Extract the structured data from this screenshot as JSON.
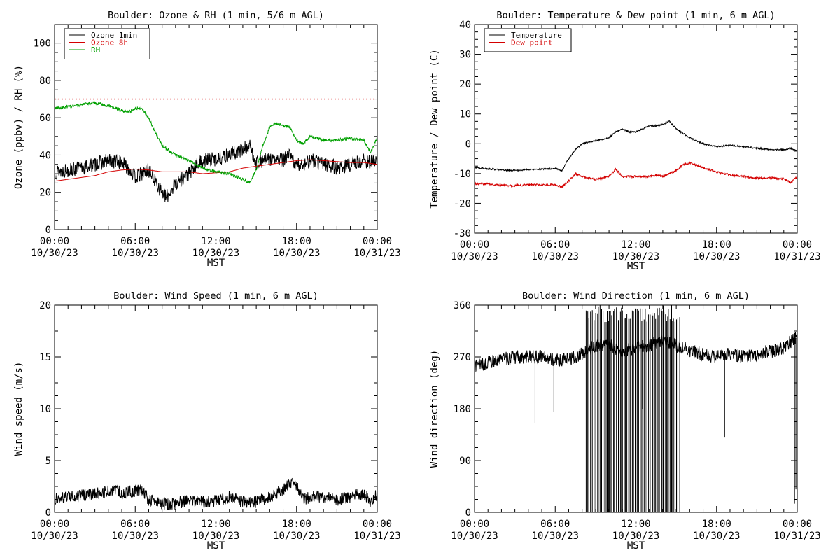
{
  "chart_data": [
    {
      "type": "line",
      "title": "Boulder: Ozone & RH (1 min, 5/6 m AGL)",
      "xlabel": "MST",
      "ylabel": "Ozone (ppbv) / RH (%)",
      "x_ticks": [
        {
          "time": "00:00",
          "date": "10/30/23"
        },
        {
          "time": "06:00",
          "date": "10/30/23"
        },
        {
          "time": "12:00",
          "date": "10/30/23"
        },
        {
          "time": "18:00",
          "date": "10/30/23"
        },
        {
          "time": "00:00",
          "date": "10/31/23"
        }
      ],
      "xlim_hours": [
        0,
        24
      ],
      "ylim": [
        0,
        110
      ],
      "y_ticks": [
        0,
        20,
        40,
        60,
        80,
        100
      ],
      "legend": "top-left",
      "reference_line": {
        "value": 70,
        "color": "#d40000",
        "style": "dotted"
      },
      "series": [
        {
          "name": "Ozone 1min",
          "color": "#000000",
          "noise": 4,
          "points": [
            [
              0,
              31
            ],
            [
              1,
              32
            ],
            [
              2,
              33
            ],
            [
              3,
              35
            ],
            [
              4,
              37
            ],
            [
              5,
              36
            ],
            [
              5.5,
              33
            ],
            [
              6,
              28
            ],
            [
              6.5,
              30
            ],
            [
              7,
              32
            ],
            [
              7.5,
              26
            ],
            [
              8,
              20
            ],
            [
              8.3,
              17
            ],
            [
              9,
              25
            ],
            [
              10,
              30
            ],
            [
              10.5,
              34
            ],
            [
              11,
              37
            ],
            [
              12,
              38
            ],
            [
              13,
              40
            ],
            [
              14,
              43
            ],
            [
              14.5,
              45
            ],
            [
              15,
              36
            ],
            [
              16,
              38
            ],
            [
              17,
              37
            ],
            [
              17.5,
              40
            ],
            [
              18,
              34
            ],
            [
              19,
              37
            ],
            [
              20,
              36
            ],
            [
              21,
              33
            ],
            [
              22,
              35
            ],
            [
              23,
              37
            ],
            [
              24,
              36
            ]
          ]
        },
        {
          "name": "Ozone 8h",
          "color": "#d40000",
          "noise": 0,
          "points": [
            [
              0,
              26
            ],
            [
              1,
              27
            ],
            [
              2,
              28
            ],
            [
              3,
              29
            ],
            [
              4,
              31
            ],
            [
              5,
              32
            ],
            [
              6,
              32.5
            ],
            [
              7,
              32
            ],
            [
              8,
              31
            ],
            [
              9,
              31
            ],
            [
              10,
              31
            ],
            [
              11,
              30
            ],
            [
              12,
              30.5
            ],
            [
              13,
              31
            ],
            [
              14,
              33
            ],
            [
              15,
              34
            ],
            [
              16,
              35
            ],
            [
              17,
              36
            ],
            [
              18,
              37
            ],
            [
              19,
              37.5
            ],
            [
              20,
              37
            ],
            [
              21,
              36.5
            ],
            [
              22,
              36
            ],
            [
              23,
              36
            ],
            [
              24,
              35
            ]
          ]
        },
        {
          "name": "RH",
          "color": "#00a000",
          "noise": 0.8,
          "points": [
            [
              0,
              65
            ],
            [
              1,
              66
            ],
            [
              2,
              67
            ],
            [
              3,
              68
            ],
            [
              4,
              66.5
            ],
            [
              5,
              64
            ],
            [
              5.5,
              63
            ],
            [
              6,
              65
            ],
            [
              6.5,
              65
            ],
            [
              7,
              60
            ],
            [
              7.5,
              52
            ],
            [
              8,
              45
            ],
            [
              9,
              40
            ],
            [
              10,
              37
            ],
            [
              11,
              33
            ],
            [
              12,
              31
            ],
            [
              13,
              30
            ],
            [
              14,
              27
            ],
            [
              14.5,
              25
            ],
            [
              15,
              32
            ],
            [
              15.5,
              45
            ],
            [
              16,
              55
            ],
            [
              16.5,
              57
            ],
            [
              17,
              56
            ],
            [
              17.5,
              55
            ],
            [
              18,
              48
            ],
            [
              18.5,
              46
            ],
            [
              19,
              50
            ],
            [
              20,
              48
            ],
            [
              21,
              48
            ],
            [
              22,
              49
            ],
            [
              23,
              48
            ],
            [
              23.5,
              41
            ],
            [
              24,
              50
            ]
          ]
        }
      ]
    },
    {
      "type": "line",
      "title": "Boulder: Temperature & Dew point (1 min, 6 m AGL)",
      "xlabel": "MST",
      "ylabel": "Temperature / Dew point (C)",
      "x_ticks": [
        {
          "time": "00:00",
          "date": "10/30/23"
        },
        {
          "time": "06:00",
          "date": "10/30/23"
        },
        {
          "time": "12:00",
          "date": "10/30/23"
        },
        {
          "time": "18:00",
          "date": "10/30/23"
        },
        {
          "time": "00:00",
          "date": "10/31/23"
        }
      ],
      "xlim_hours": [
        0,
        24
      ],
      "ylim": [
        -30,
        40
      ],
      "y_ticks": [
        -30,
        -20,
        -10,
        0,
        10,
        20,
        30,
        40
      ],
      "legend": "top-left",
      "series": [
        {
          "name": "Temperature",
          "color": "#000000",
          "noise": 0.25,
          "points": [
            [
              0,
              -8
            ],
            [
              2,
              -8.8
            ],
            [
              3,
              -9
            ],
            [
              4,
              -8.7
            ],
            [
              5,
              -8.5
            ],
            [
              6,
              -8.3
            ],
            [
              6.5,
              -9
            ],
            [
              7,
              -5
            ],
            [
              7.5,
              -2
            ],
            [
              8,
              0
            ],
            [
              9,
              1
            ],
            [
              10,
              2
            ],
            [
              10.5,
              4
            ],
            [
              11,
              5
            ],
            [
              11.5,
              4
            ],
            [
              12,
              4
            ],
            [
              13,
              6
            ],
            [
              13.5,
              6
            ],
            [
              14,
              6.5
            ],
            [
              14.5,
              7.5
            ],
            [
              15,
              5
            ],
            [
              16,
              2
            ],
            [
              17,
              0
            ],
            [
              18,
              -1
            ],
            [
              19,
              -0.5
            ],
            [
              20,
              -1
            ],
            [
              21,
              -1.5
            ],
            [
              22,
              -2
            ],
            [
              23,
              -2
            ],
            [
              23.5,
              -1.5
            ],
            [
              24,
              -2.5
            ]
          ]
        },
        {
          "name": "Dew point",
          "color": "#d40000",
          "noise": 0.35,
          "points": [
            [
              0,
              -13.5
            ],
            [
              1,
              -13.5
            ],
            [
              2,
              -14
            ],
            [
              3,
              -14
            ],
            [
              4,
              -13.8
            ],
            [
              5,
              -13.8
            ],
            [
              6,
              -13.8
            ],
            [
              6.5,
              -14.5
            ],
            [
              7,
              -12.5
            ],
            [
              7.5,
              -10
            ],
            [
              8,
              -11
            ],
            [
              9,
              -12
            ],
            [
              10,
              -11
            ],
            [
              10.5,
              -8.5
            ],
            [
              11,
              -11
            ],
            [
              12,
              -11
            ],
            [
              13,
              -11
            ],
            [
              13.5,
              -10.5
            ],
            [
              14,
              -11
            ],
            [
              14.5,
              -10
            ],
            [
              15,
              -9
            ],
            [
              15.5,
              -7
            ],
            [
              16,
              -6.5
            ],
            [
              17,
              -8
            ],
            [
              18,
              -9.5
            ],
            [
              19,
              -10.5
            ],
            [
              20,
              -11
            ],
            [
              21,
              -11.5
            ],
            [
              22,
              -11.5
            ],
            [
              23,
              -11.8
            ],
            [
              23.5,
              -13
            ],
            [
              24,
              -11
            ]
          ]
        }
      ]
    },
    {
      "type": "line",
      "title": "Boulder: Wind Speed (1 min, 6 m AGL)",
      "xlabel": "MST",
      "ylabel": "Wind speed (m/s)",
      "x_ticks": [
        {
          "time": "00:00",
          "date": "10/30/23"
        },
        {
          "time": "06:00",
          "date": "10/30/23"
        },
        {
          "time": "12:00",
          "date": "10/30/23"
        },
        {
          "time": "18:00",
          "date": "10/30/23"
        },
        {
          "time": "00:00",
          "date": "10/31/23"
        }
      ],
      "xlim_hours": [
        0,
        24
      ],
      "ylim": [
        0,
        20
      ],
      "y_ticks": [
        0,
        5,
        10,
        15,
        20
      ],
      "series": [
        {
          "color": "#000000",
          "noise": 0.6,
          "points": [
            [
              0,
              1.3
            ],
            [
              1,
              1.5
            ],
            [
              2,
              1.6
            ],
            [
              3,
              1.8
            ],
            [
              4,
              2.0
            ],
            [
              4.5,
              2.3
            ],
            [
              5,
              1.8
            ],
            [
              6,
              2.1
            ],
            [
              6.5,
              2.2
            ],
            [
              7,
              1.2
            ],
            [
              8,
              0.8
            ],
            [
              9,
              0.8
            ],
            [
              10,
              1.2
            ],
            [
              11,
              1.0
            ],
            [
              12,
              1.1
            ],
            [
              13,
              1.5
            ],
            [
              14,
              1.0
            ],
            [
              15,
              1.0
            ],
            [
              16,
              1.5
            ],
            [
              17,
              2.2
            ],
            [
              17.5,
              3.0
            ],
            [
              18,
              2.5
            ],
            [
              18.5,
              1.2
            ],
            [
              19,
              1.5
            ],
            [
              20,
              1.5
            ],
            [
              21,
              1.2
            ],
            [
              22,
              1.5
            ],
            [
              23,
              1.8
            ],
            [
              23.5,
              1.0
            ],
            [
              24,
              1.8
            ]
          ]
        }
      ]
    },
    {
      "type": "line",
      "title": "Boulder: Wind Direction (1 min, 6 m AGL)",
      "xlabel": "MST",
      "ylabel": "Wind direction (deg)",
      "x_ticks": [
        {
          "time": "00:00",
          "date": "10/30/23"
        },
        {
          "time": "06:00",
          "date": "10/30/23"
        },
        {
          "time": "12:00",
          "date": "10/30/23"
        },
        {
          "time": "18:00",
          "date": "10/30/23"
        },
        {
          "time": "00:00",
          "date": "10/31/23"
        }
      ],
      "xlim_hours": [
        0,
        24
      ],
      "ylim": [
        0,
        360
      ],
      "y_ticks": [
        0,
        90,
        180,
        270,
        360
      ],
      "series": [
        {
          "color": "#000000",
          "noise": 12,
          "points": [
            [
              0,
              255
            ],
            [
              1,
              260
            ],
            [
              2,
              265
            ],
            [
              3,
              270
            ],
            [
              4,
              270
            ],
            [
              5,
              270
            ],
            [
              6,
              265
            ],
            [
              7,
              265
            ],
            [
              8,
              275
            ],
            [
              9,
              290
            ],
            [
              10,
              290
            ],
            [
              11,
              280
            ],
            [
              12,
              285
            ],
            [
              13,
              290
            ],
            [
              14,
              300
            ],
            [
              15,
              290
            ],
            [
              16,
              280
            ],
            [
              17,
              275
            ],
            [
              18,
              270
            ],
            [
              19,
              275
            ],
            [
              20,
              270
            ],
            [
              21,
              275
            ],
            [
              22,
              280
            ],
            [
              23,
              285
            ],
            [
              24,
              305
            ]
          ]
        }
      ],
      "wrap_band_hours": [
        8.3,
        15.3
      ],
      "outliers": [
        [
          4.5,
          155
        ],
        [
          5.9,
          175
        ],
        [
          12.5,
          180
        ],
        [
          18.6,
          130
        ],
        [
          23.8,
          15
        ],
        [
          23.9,
          40
        ]
      ]
    }
  ]
}
